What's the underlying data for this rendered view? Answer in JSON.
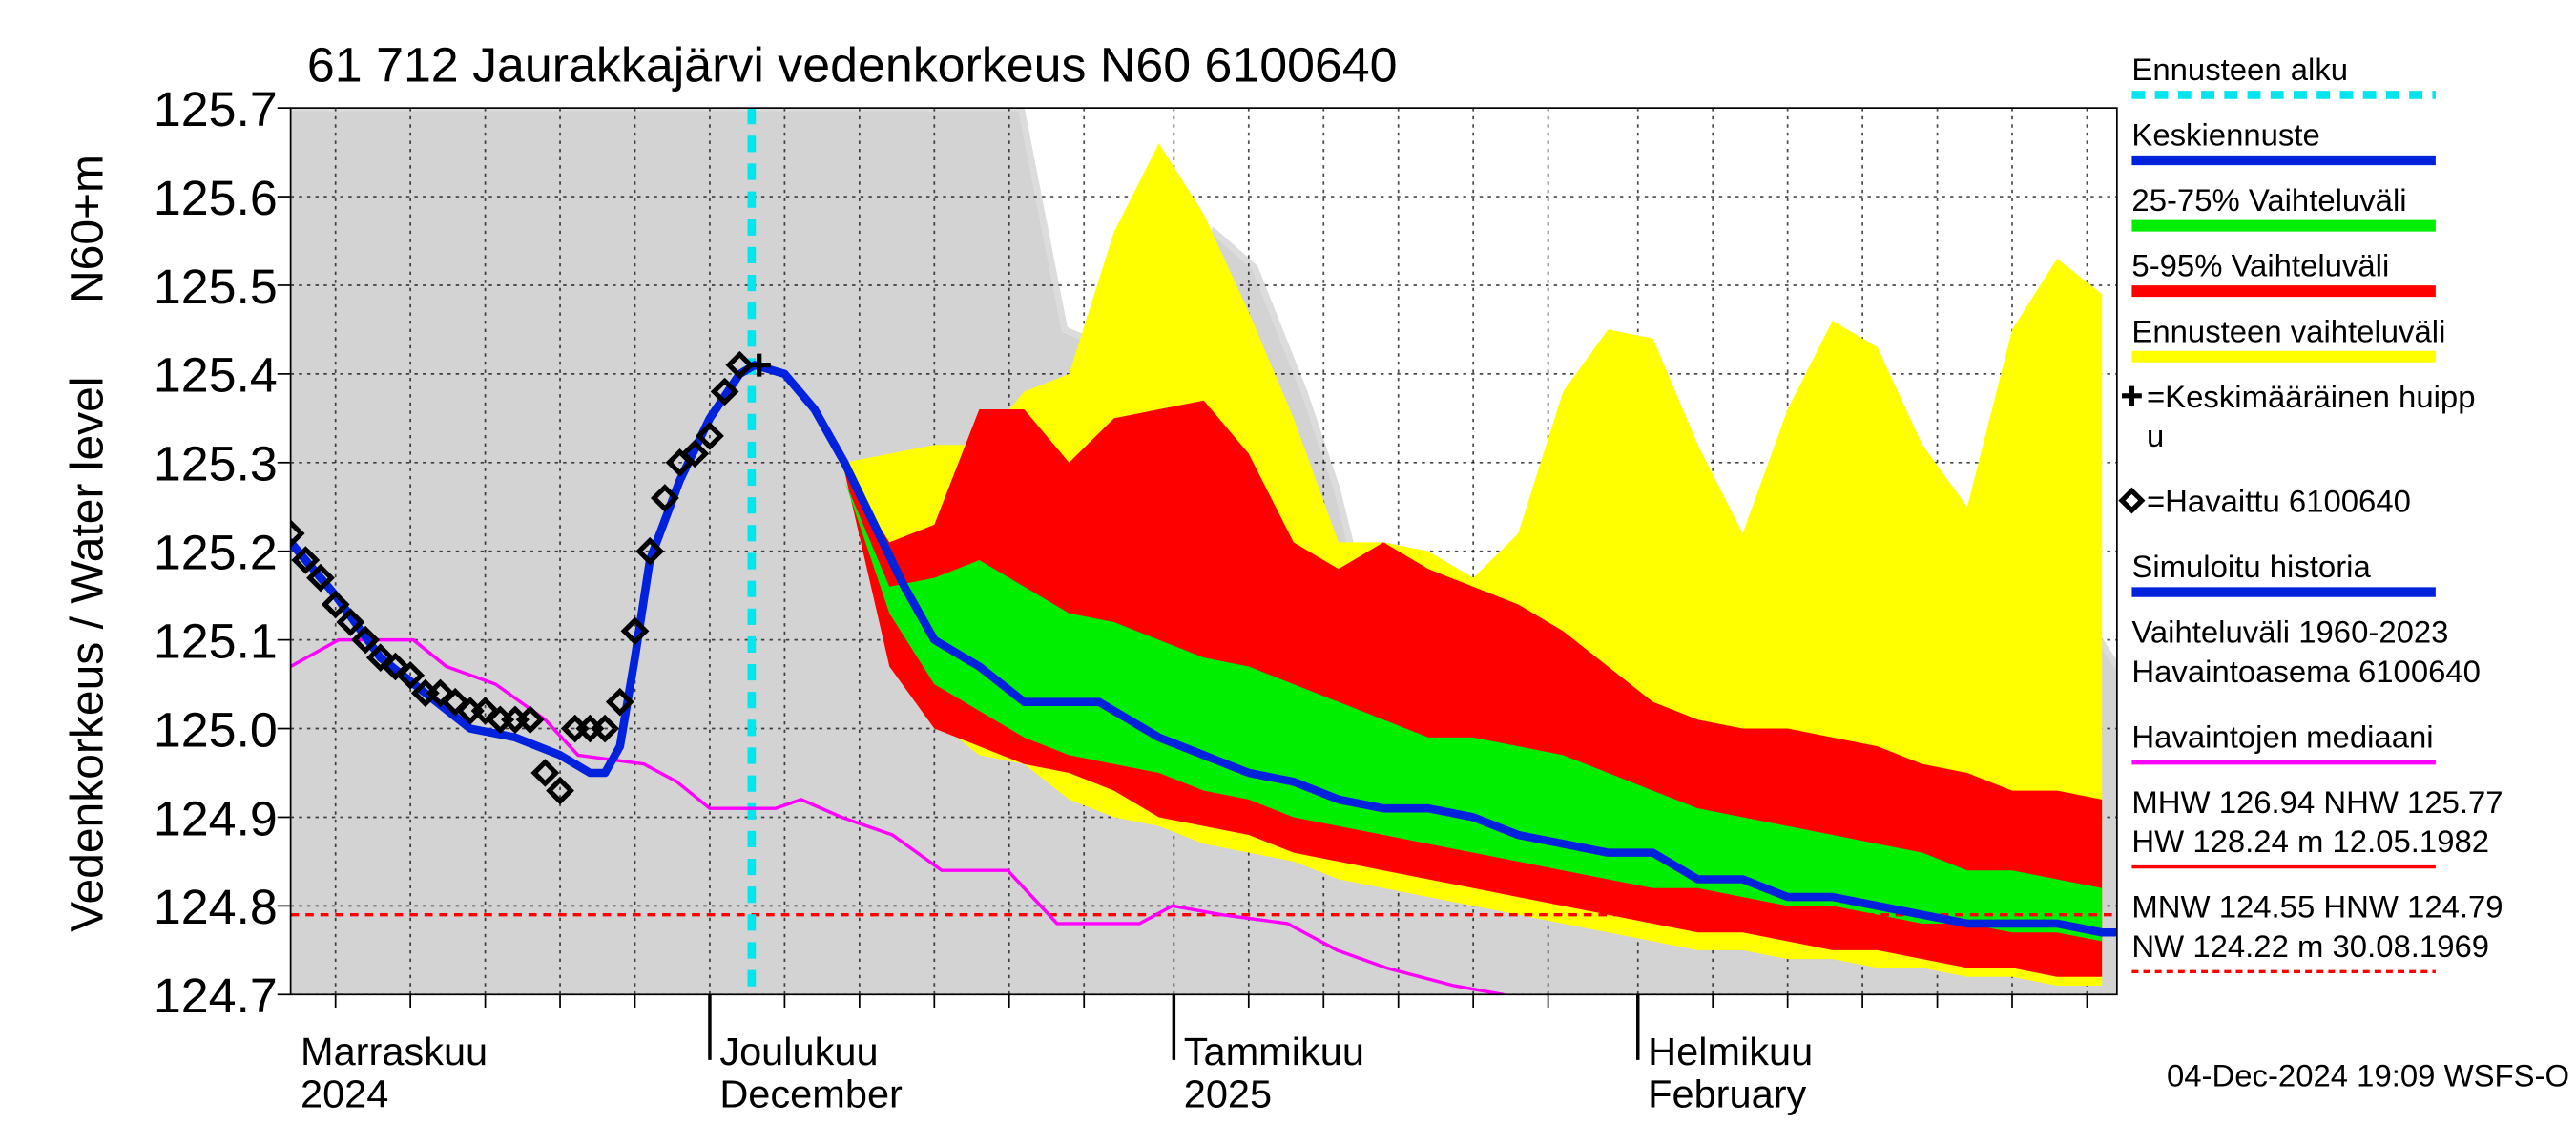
{
  "chart_data": {
    "type": "line",
    "title": "61 712 Jaurakkajärvi vedenkorkeus N60 6100640",
    "ylabel": "Vedenkorkeus / Water level",
    "ylabel_unit": "N60+m",
    "timestamp": "04-Dec-2024 19:09 WSFS-O",
    "grid": true,
    "xlim": [
      2,
      124
    ],
    "xticks": [
      {
        "value": 0,
        "label": [
          "Marraskuu",
          "2024"
        ]
      },
      {
        "value": 30,
        "label": [
          "Joulukuu",
          "December"
        ]
      },
      {
        "value": 61,
        "label": [
          "Tammikuu",
          "2025"
        ]
      },
      {
        "value": 92,
        "label": [
          "Helmikuu",
          "February"
        ]
      }
    ],
    "xminorticks": [
      5,
      10,
      15,
      20,
      25,
      35,
      40,
      45,
      50,
      55,
      66,
      71,
      76,
      81,
      86,
      97,
      102,
      107,
      112,
      117,
      122
    ],
    "ylim": [
      124.7,
      125.7
    ],
    "yticks": [
      124.7,
      124.8,
      124.9,
      {
        "value": 125,
        "label": "125.0"
      },
      125.1,
      125.2,
      125.3,
      125.4,
      125.5,
      125.6,
      125.7
    ],
    "forecast_start": {
      "name": "Ennusteen alku",
      "x": 32.8,
      "color": "#00e5ee"
    },
    "bands": [
      {
        "name": [
          "Vaihteluväli 1960-2023",
          " Havaintoasema 6100640"
        ],
        "color": "#d3d3d3",
        "edge_color": "#dcdcdc",
        "x": [
          2,
          50.8,
          53.7,
          56.5,
          58.7,
          60.9,
          63.7,
          66.4,
          69.7,
          71.9,
          74.1,
          81.9,
          86.3,
          88.5,
          92.9,
          97.3,
          100.6,
          103.9,
          108.3,
          112.7,
          116.6,
          119.4,
          124
        ],
        "upper": [
          125.7,
          125.7,
          125.45,
          125.43,
          125.37,
          125.45,
          125.56,
          125.52,
          125.38,
          125.27,
          125.12,
          125.12,
          125.14,
          125.08,
          125.03,
          124.98,
          124.96,
          125.01,
          125.07,
          125.14,
          125.23,
          125.19,
          125.07
        ]
      },
      {
        "name": "Ennusteen vaihteluväli",
        "color": "#ffff00",
        "x": [
          39,
          42,
          45,
          48,
          51,
          54,
          57,
          60,
          63,
          66,
          69,
          72,
          75,
          78,
          81,
          84,
          87,
          90,
          93,
          96,
          99,
          102,
          105,
          108,
          111,
          114,
          117,
          120,
          123
        ],
        "upper": [
          125.3,
          125.31,
          125.32,
          125.32,
          125.38,
          125.4,
          125.56,
          125.66,
          125.58,
          125.47,
          125.35,
          125.21,
          125.21,
          125.2,
          125.17,
          125.22,
          125.38,
          125.45,
          125.44,
          125.32,
          125.22,
          125.36,
          125.46,
          125.43,
          125.32,
          125.25,
          125.45,
          125.53,
          125.49
        ],
        "lower": [
          125.3,
          125.09,
          125.01,
          124.97,
          124.96,
          124.92,
          124.9,
          124.89,
          124.87,
          124.86,
          124.85,
          124.83,
          124.82,
          124.81,
          124.8,
          124.79,
          124.78,
          124.77,
          124.76,
          124.75,
          124.75,
          124.74,
          124.74,
          124.73,
          124.73,
          124.72,
          124.72,
          124.71,
          124.71
        ]
      },
      {
        "name": "5-95% Vaihteluväli",
        "color": "#ff0000",
        "x": [
          39,
          42,
          45,
          48,
          51,
          54,
          57,
          60,
          63,
          66,
          69,
          72,
          75,
          78,
          81,
          84,
          87,
          90,
          93,
          96,
          99,
          102,
          105,
          108,
          111,
          114,
          117,
          120,
          123
        ],
        "upper": [
          125.29,
          125.21,
          125.23,
          125.36,
          125.36,
          125.3,
          125.35,
          125.36,
          125.37,
          125.31,
          125.21,
          125.18,
          125.21,
          125.18,
          125.16,
          125.14,
          125.11,
          125.07,
          125.03,
          125.01,
          125.0,
          125.0,
          124.99,
          124.98,
          124.96,
          124.95,
          124.93,
          124.93,
          124.92
        ],
        "lower": [
          125.29,
          125.07,
          125.0,
          124.98,
          124.96,
          124.95,
          124.93,
          124.9,
          124.89,
          124.88,
          124.86,
          124.85,
          124.84,
          124.83,
          124.82,
          124.81,
          124.8,
          124.79,
          124.78,
          124.77,
          124.77,
          124.76,
          124.75,
          124.75,
          124.74,
          124.73,
          124.73,
          124.72,
          124.72
        ]
      },
      {
        "name": "25-75% Vaihteluväli",
        "color": "#00ee00",
        "x": [
          39,
          42,
          45,
          48,
          51,
          54,
          57,
          60,
          63,
          66,
          69,
          72,
          75,
          78,
          81,
          84,
          87,
          90,
          93,
          96,
          99,
          102,
          105,
          108,
          111,
          114,
          117,
          120,
          123
        ],
        "upper": [
          125.28,
          125.16,
          125.17,
          125.19,
          125.16,
          125.13,
          125.12,
          125.1,
          125.08,
          125.07,
          125.05,
          125.03,
          125.01,
          124.99,
          124.99,
          124.98,
          124.97,
          124.95,
          124.93,
          124.91,
          124.9,
          124.89,
          124.88,
          124.87,
          124.86,
          124.84,
          124.84,
          124.83,
          124.82
        ],
        "lower": [
          125.28,
          125.13,
          125.05,
          125.02,
          124.99,
          124.97,
          124.96,
          124.95,
          124.93,
          124.92,
          124.9,
          124.89,
          124.88,
          124.87,
          124.86,
          124.85,
          124.84,
          124.83,
          124.82,
          124.82,
          124.81,
          124.8,
          124.8,
          124.79,
          124.78,
          124.78,
          124.77,
          124.77,
          124.76
        ]
      }
    ],
    "series": [
      {
        "name": "Havaintojen mediaani",
        "color": "#ff00ff",
        "width": 2,
        "x": [
          2,
          5.2,
          10.2,
          12.4,
          15.7,
          19,
          21.2,
          25.6,
          27.8,
          30,
          34.4,
          36.1,
          38.8,
          42.2,
          45.5,
          49.9,
          53.2,
          55.4,
          58.7,
          60.9,
          64.2,
          68.6,
          71.9,
          75.2,
          79.7,
          83
        ],
        "values": [
          125.07,
          125.1,
          125.1,
          125.07,
          125.05,
          125.01,
          124.97,
          124.96,
          124.94,
          124.91,
          124.91,
          124.92,
          124.9,
          124.88,
          124.84,
          124.84,
          124.78,
          124.78,
          124.78,
          124.8,
          124.79,
          124.78,
          124.75,
          124.73,
          124.71,
          124.7
        ]
      },
      {
        "name": "Simuloitu historia",
        "color": "#0022dd",
        "width": 5,
        "x": [
          2,
          5,
          8,
          11,
          14,
          17,
          20,
          22,
          23,
          24,
          25,
          26,
          28,
          30,
          32,
          33
        ],
        "values": [
          125.21,
          125.15,
          125.08,
          125.04,
          125.0,
          124.99,
          124.97,
          124.95,
          124.95,
          124.98,
          125.08,
          125.19,
          125.28,
          125.35,
          125.4,
          125.41
        ]
      },
      {
        "name": "Keskiennuste",
        "color": "#0022dd",
        "width": 5,
        "x": [
          33,
          35,
          37,
          39,
          41,
          43,
          45,
          48,
          51,
          54,
          56,
          58,
          60,
          63,
          66,
          69,
          72,
          75,
          78,
          81,
          84,
          87,
          90,
          93,
          96,
          99,
          102,
          105,
          108,
          111,
          114,
          117,
          120,
          123,
          124
        ],
        "values": [
          125.41,
          125.4,
          125.36,
          125.3,
          125.23,
          125.16,
          125.1,
          125.07,
          125.03,
          125.03,
          125.03,
          125.01,
          124.99,
          124.97,
          124.95,
          124.94,
          124.92,
          124.91,
          124.91,
          124.9,
          124.88,
          124.87,
          124.86,
          124.86,
          124.83,
          124.83,
          124.81,
          124.81,
          124.8,
          124.79,
          124.78,
          124.78,
          124.78,
          124.77,
          124.77
        ]
      },
      {
        "name": "=Havaittu 6100640",
        "color": "#000000",
        "marker": "diamond",
        "x": [
          2,
          3,
          4,
          5,
          6,
          7,
          8,
          9,
          10,
          11,
          12,
          13,
          14,
          15,
          16,
          17,
          18,
          19,
          20,
          21,
          22,
          23,
          24,
          25,
          26,
          27,
          28,
          29,
          30,
          31,
          32
        ],
        "values": [
          125.22,
          125.19,
          125.17,
          125.14,
          125.12,
          125.1,
          125.08,
          125.07,
          125.06,
          125.04,
          125.04,
          125.03,
          125.02,
          125.02,
          125.01,
          125.01,
          125.01,
          124.95,
          124.93,
          125.0,
          125.0,
          125.0,
          125.03,
          125.11,
          125.2,
          125.26,
          125.3,
          125.31,
          125.33,
          125.38,
          125.41
        ]
      },
      {
        "name": [
          "=Keskimääräinen huipp",
          "u"
        ],
        "color": "#000000",
        "marker": "plus",
        "x": [
          33.3
        ],
        "values": [
          125.41
        ]
      }
    ],
    "reference_lines": [
      {
        "name": [
          "MHW 126.94 NHW 125.77",
          "HW 128.24 m 12.05.1982"
        ],
        "color": "#ff0000",
        "dash": false
      },
      {
        "name": [
          "MNW 124.55 HNW 124.79",
          "NW 124.22 m 30.08.1969"
        ],
        "color": "#ff0000",
        "dash": true,
        "value": 124.79
      }
    ]
  }
}
